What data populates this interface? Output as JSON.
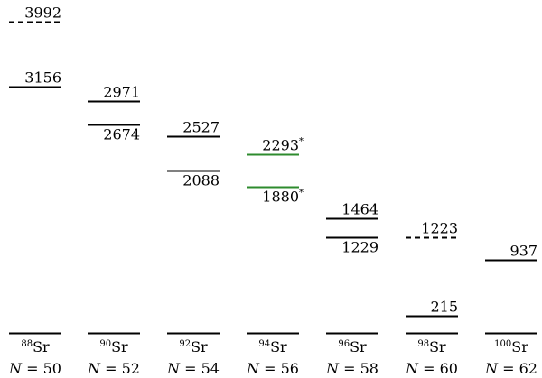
{
  "chart_data": {
    "type": "level-scheme",
    "columns": [
      {
        "mass": "88",
        "element": "Sr",
        "n_label": "N = 50",
        "n_symbol": "N",
        "n_value": "50",
        "levels": [
          {
            "energy": 0,
            "label": "",
            "style": "solid",
            "color": "#000000",
            "star": false
          },
          {
            "energy": 3156,
            "label": "3156",
            "style": "solid",
            "color": "#000000",
            "star": false
          },
          {
            "energy": 3992,
            "label": "3992",
            "style": "dashed",
            "color": "#000000",
            "star": false
          }
        ]
      },
      {
        "mass": "90",
        "element": "Sr",
        "n_label": "N = 52",
        "n_symbol": "N",
        "n_value": "52",
        "levels": [
          {
            "energy": 0,
            "label": "",
            "style": "solid",
            "color": "#000000",
            "star": false
          },
          {
            "energy": 2674,
            "label": "2674",
            "style": "solid",
            "color": "#000000",
            "star": false
          },
          {
            "energy": 2971,
            "label": "2971",
            "style": "solid",
            "color": "#000000",
            "star": false
          }
        ]
      },
      {
        "mass": "92",
        "element": "Sr",
        "n_label": "N = 54",
        "n_symbol": "N",
        "n_value": "54",
        "levels": [
          {
            "energy": 0,
            "label": "",
            "style": "solid",
            "color": "#000000",
            "star": false
          },
          {
            "energy": 2088,
            "label": "2088",
            "style": "solid",
            "color": "#000000",
            "star": false
          },
          {
            "energy": 2527,
            "label": "2527",
            "style": "solid",
            "color": "#000000",
            "star": false
          }
        ]
      },
      {
        "mass": "94",
        "element": "Sr",
        "n_label": "N = 56",
        "n_symbol": "N",
        "n_value": "56",
        "levels": [
          {
            "energy": 0,
            "label": "",
            "style": "solid",
            "color": "#000000",
            "star": false
          },
          {
            "energy": 1880,
            "label": "1880",
            "style": "solid",
            "color": "#2e8b2e",
            "star": true
          },
          {
            "energy": 2293,
            "label": "2293",
            "style": "solid",
            "color": "#2e8b2e",
            "star": true
          }
        ]
      },
      {
        "mass": "96",
        "element": "Sr",
        "n_label": "N = 58",
        "n_symbol": "N",
        "n_value": "58",
        "levels": [
          {
            "energy": 0,
            "label": "",
            "style": "solid",
            "color": "#000000",
            "star": false
          },
          {
            "energy": 1229,
            "label": "1229",
            "style": "solid",
            "color": "#000000",
            "star": false
          },
          {
            "energy": 1464,
            "label": "1464",
            "style": "solid",
            "color": "#000000",
            "star": false
          }
        ]
      },
      {
        "mass": "98",
        "element": "Sr",
        "n_label": "N = 60",
        "n_symbol": "N",
        "n_value": "60",
        "levels": [
          {
            "energy": 0,
            "label": "",
            "style": "solid",
            "color": "#000000",
            "star": false
          },
          {
            "energy": 215,
            "label": "215",
            "style": "solid",
            "color": "#000000",
            "star": false
          },
          {
            "energy": 1223,
            "label": "1223",
            "style": "dashed",
            "color": "#000000",
            "star": false
          }
        ]
      },
      {
        "mass": "100",
        "element": "Sr",
        "n_label": "N = 62",
        "n_symbol": "N",
        "n_value": "62",
        "levels": [
          {
            "energy": 0,
            "label": "",
            "style": "solid",
            "color": "#000000",
            "star": false
          },
          {
            "energy": 937,
            "label": "937",
            "style": "solid",
            "color": "#000000",
            "star": false
          }
        ]
      }
    ],
    "star_symbol": "*",
    "energy_range": [
      0,
      3992
    ],
    "colors": {
      "default_level": "#000000",
      "highlight_level": "#2e8b2e"
    }
  }
}
